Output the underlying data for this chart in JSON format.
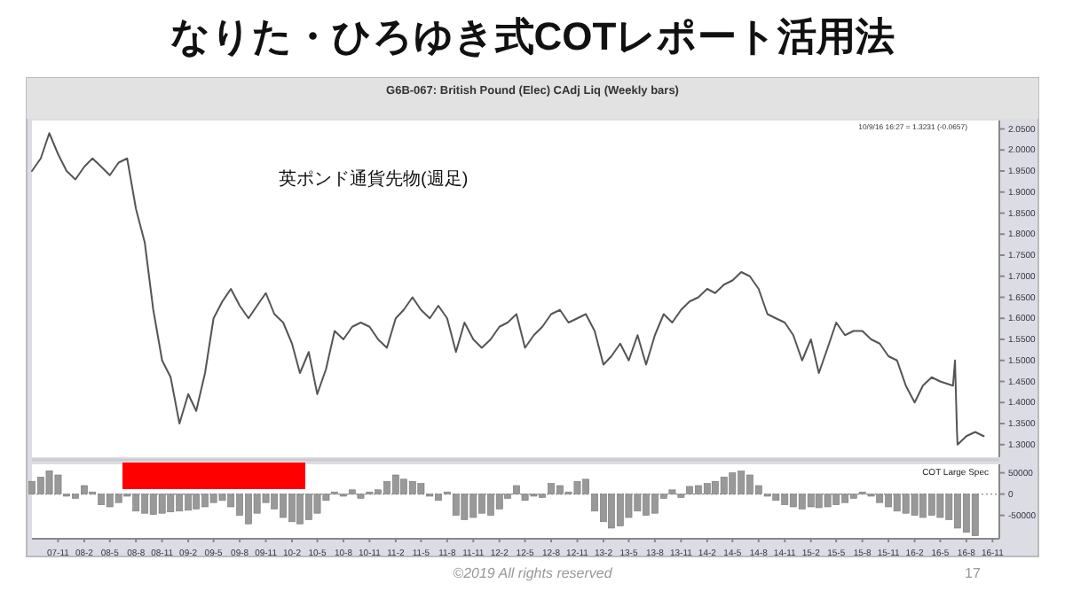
{
  "chart_data": [
    {
      "type": "line",
      "title": "なりた・ひろゆき式COTレポート活用法",
      "subtitle": "G6B-067:  British Pound (Elec) CAdj Liq  (Weekly bars)",
      "annotations": [
        "英ポンド通貨先物(週足)",
        "10/9/16 16:27 = 1.3231 (-0.0657)"
      ],
      "xlim": [
        "2007-08-01",
        "2016-11-25"
      ],
      "ylim": [
        1.27,
        2.07
      ],
      "yticks": [
        {
          "value": 1.3,
          "label": "1.3000"
        },
        {
          "value": 1.35,
          "label": "1.3500"
        },
        {
          "value": 1.4,
          "label": "1.4000"
        },
        {
          "value": 1.45,
          "label": "1.4500"
        },
        {
          "value": 1.5,
          "label": "1.5000"
        },
        {
          "value": 1.55,
          "label": "1.5500"
        },
        {
          "value": 1.6,
          "label": "1.6000"
        },
        {
          "value": 1.65,
          "label": "1.6500"
        },
        {
          "value": 1.7,
          "label": "1.7000"
        },
        {
          "value": 1.75,
          "label": "1.7500"
        },
        {
          "value": 1.8,
          "label": "1.8000"
        },
        {
          "value": 1.85,
          "label": "1.8500"
        },
        {
          "value": 1.9,
          "label": "1.9000"
        },
        {
          "value": 1.95,
          "label": "1.9500"
        },
        {
          "value": 2.0,
          "label": "2.0000"
        },
        {
          "value": 2.05,
          "label": "2.0500"
        }
      ],
      "tick_labels": "y",
      "series": [
        {
          "color": "#555555",
          "x": [
            "2007-08",
            "2007-09",
            "2007-10",
            "2007-11",
            "2007-12",
            "2008-01",
            "2008-02",
            "2008-03",
            "2008-04",
            "2008-05",
            "2008-06",
            "2008-07",
            "2008-08",
            "2008-09",
            "2008-10",
            "2008-11",
            "2008-12",
            "2009-01",
            "2009-02",
            "2009-03",
            "2009-04",
            "2009-05",
            "2009-06",
            "2009-07",
            "2009-08",
            "2009-09",
            "2009-10",
            "2009-11",
            "2009-12",
            "2010-01",
            "2010-02",
            "2010-03",
            "2010-04",
            "2010-05",
            "2010-06",
            "2010-07",
            "2010-08",
            "2010-09",
            "2010-10",
            "2010-11",
            "2010-12",
            "2011-01",
            "2011-02",
            "2011-03",
            "2011-04",
            "2011-05",
            "2011-06",
            "2011-07",
            "2011-08",
            "2011-09",
            "2011-10",
            "2011-11",
            "2011-12",
            "2012-01",
            "2012-02",
            "2012-03",
            "2012-04",
            "2012-05",
            "2012-06",
            "2012-07",
            "2012-08",
            "2012-09",
            "2012-10",
            "2012-11",
            "2012-12",
            "2013-01",
            "2013-02",
            "2013-03",
            "2013-04",
            "2013-05",
            "2013-06",
            "2013-07",
            "2013-08",
            "2013-09",
            "2013-10",
            "2013-11",
            "2013-12",
            "2014-01",
            "2014-02",
            "2014-03",
            "2014-04",
            "2014-05",
            "2014-06",
            "2014-07",
            "2014-08",
            "2014-09",
            "2014-10",
            "2014-11",
            "2014-12",
            "2015-01",
            "2015-02",
            "2015-03",
            "2015-04",
            "2015-05",
            "2015-06",
            "2015-07",
            "2015-08",
            "2015-09",
            "2015-10",
            "2015-11",
            "2015-12",
            "2016-01",
            "2016-02",
            "2016-03",
            "2016-04",
            "2016-05",
            "2016-06-15",
            "2016-06-22",
            "2016-06-29",
            "2016-07",
            "2016-08",
            "2016-09",
            "2016-10"
          ],
          "values": [
            1.95,
            1.98,
            2.04,
            1.99,
            1.95,
            1.93,
            1.96,
            1.98,
            1.96,
            1.94,
            1.97,
            1.98,
            1.86,
            1.78,
            1.62,
            1.5,
            1.46,
            1.35,
            1.42,
            1.38,
            1.47,
            1.6,
            1.64,
            1.67,
            1.63,
            1.6,
            1.63,
            1.66,
            1.61,
            1.59,
            1.54,
            1.47,
            1.52,
            1.42,
            1.48,
            1.57,
            1.55,
            1.58,
            1.59,
            1.58,
            1.55,
            1.53,
            1.6,
            1.62,
            1.65,
            1.62,
            1.6,
            1.63,
            1.6,
            1.52,
            1.59,
            1.55,
            1.53,
            1.55,
            1.58,
            1.59,
            1.61,
            1.53,
            1.56,
            1.58,
            1.61,
            1.62,
            1.59,
            1.6,
            1.61,
            1.57,
            1.49,
            1.51,
            1.54,
            1.5,
            1.56,
            1.49,
            1.56,
            1.61,
            1.59,
            1.62,
            1.64,
            1.65,
            1.67,
            1.66,
            1.68,
            1.69,
            1.71,
            1.7,
            1.67,
            1.61,
            1.6,
            1.59,
            1.56,
            1.5,
            1.55,
            1.47,
            1.53,
            1.59,
            1.56,
            1.57,
            1.57,
            1.55,
            1.54,
            1.51,
            1.5,
            1.44,
            1.4,
            1.44,
            1.46,
            1.45,
            1.44,
            1.5,
            1.33,
            1.3,
            1.32,
            1.33,
            1.32
          ]
        }
      ]
    },
    {
      "type": "bar",
      "annotations": [
        "©2019 All rights reserved",
        "17"
      ],
      "xlim": [
        "2007-08-01",
        "2016-11-25"
      ],
      "xticks": [
        {
          "value": "2007-11",
          "label": "07-11"
        },
        {
          "value": "2008-02",
          "label": "08-2"
        },
        {
          "value": "2008-05",
          "label": "08-5"
        },
        {
          "value": "2008-08",
          "label": "08-8"
        },
        {
          "value": "2008-11",
          "label": "08-11"
        },
        {
          "value": "2009-02",
          "label": "09-2"
        },
        {
          "value": "2009-05",
          "label": "09-5"
        },
        {
          "value": "2009-08",
          "label": "09-8"
        },
        {
          "value": "2009-11",
          "label": "09-11"
        },
        {
          "value": "2010-02",
          "label": "10-2"
        },
        {
          "value": "2010-05",
          "label": "10-5"
        },
        {
          "value": "2010-08",
          "label": "10-8"
        },
        {
          "value": "2010-11",
          "label": "10-11"
        },
        {
          "value": "2011-02",
          "label": "11-2"
        },
        {
          "value": "2011-05",
          "label": "11-5"
        },
        {
          "value": "2011-08",
          "label": "11-8"
        },
        {
          "value": "2011-11",
          "label": "11-11"
        },
        {
          "value": "2012-02",
          "label": "12-2"
        },
        {
          "value": "2012-05",
          "label": "12-5"
        },
        {
          "value": "2012-08",
          "label": "12-8"
        },
        {
          "value": "2012-11",
          "label": "12-11"
        },
        {
          "value": "2013-02",
          "label": "13-2"
        },
        {
          "value": "2013-05",
          "label": "13-5"
        },
        {
          "value": "2013-08",
          "label": "13-8"
        },
        {
          "value": "2013-11",
          "label": "13-11"
        },
        {
          "value": "2014-02",
          "label": "14-2"
        },
        {
          "value": "2014-05",
          "label": "14-5"
        },
        {
          "value": "2014-08",
          "label": "14-8"
        },
        {
          "value": "2014-11",
          "label": "14-11"
        },
        {
          "value": "2015-02",
          "label": "15-2"
        },
        {
          "value": "2015-05",
          "label": "15-5"
        },
        {
          "value": "2015-08",
          "label": "15-8"
        },
        {
          "value": "2015-11",
          "label": "15-11"
        },
        {
          "value": "2016-02",
          "label": "16-2"
        },
        {
          "value": "2016-05",
          "label": "16-5"
        },
        {
          "value": "2016-08",
          "label": "16-8"
        },
        {
          "value": "2016-11",
          "label": "16-11"
        }
      ],
      "ylim": [
        -105000,
        70000
      ],
      "yticks": [
        -50000,
        0,
        50000
      ],
      "legend": "top right",
      "ref_lines": [
        {
          "axis": "y",
          "value": 0,
          "line_style": "dotted",
          "color": "#888888"
        }
      ],
      "series": [
        {
          "name": "COT Large Spec",
          "color": "#999999",
          "x": [
            "2007-08",
            "2007-09",
            "2007-10",
            "2007-11",
            "2007-12",
            "2008-01",
            "2008-02",
            "2008-03",
            "2008-04",
            "2008-05",
            "2008-06",
            "2008-07",
            "2008-08",
            "2008-09",
            "2008-10",
            "2008-11",
            "2008-12",
            "2009-01",
            "2009-02",
            "2009-03",
            "2009-04",
            "2009-05",
            "2009-06",
            "2009-07",
            "2009-08",
            "2009-09",
            "2009-10",
            "2009-11",
            "2009-12",
            "2010-01",
            "2010-02",
            "2010-03",
            "2010-04",
            "2010-05",
            "2010-06",
            "2010-07",
            "2010-08",
            "2010-09",
            "2010-10",
            "2010-11",
            "2010-12",
            "2011-01",
            "2011-02",
            "2011-03",
            "2011-04",
            "2011-05",
            "2011-06",
            "2011-07",
            "2011-08",
            "2011-09",
            "2011-10",
            "2011-11",
            "2011-12",
            "2012-01",
            "2012-02",
            "2012-03",
            "2012-04",
            "2012-05",
            "2012-06",
            "2012-07",
            "2012-08",
            "2012-09",
            "2012-10",
            "2012-11",
            "2012-12",
            "2013-01",
            "2013-02",
            "2013-03",
            "2013-04",
            "2013-05",
            "2013-06",
            "2013-07",
            "2013-08",
            "2013-09",
            "2013-10",
            "2013-11",
            "2013-12",
            "2014-01",
            "2014-02",
            "2014-03",
            "2014-04",
            "2014-05",
            "2014-06",
            "2014-07",
            "2014-08",
            "2014-09",
            "2014-10",
            "2014-11",
            "2014-12",
            "2015-01",
            "2015-02",
            "2015-03",
            "2015-04",
            "2015-05",
            "2015-06",
            "2015-07",
            "2015-08",
            "2015-09",
            "2015-10",
            "2015-11",
            "2015-12",
            "2016-01",
            "2016-02",
            "2016-03",
            "2016-04",
            "2016-05",
            "2016-06",
            "2016-07",
            "2016-08",
            "2016-09"
          ],
          "values": [
            30000,
            40000,
            55000,
            45000,
            -5000,
            -10000,
            20000,
            5000,
            -25000,
            -30000,
            -20000,
            -5000,
            -40000,
            -45000,
            -48000,
            -45000,
            -42000,
            -40000,
            -38000,
            -35000,
            -30000,
            -20000,
            -15000,
            -30000,
            -50000,
            -70000,
            -45000,
            -20000,
            -35000,
            -55000,
            -65000,
            -70000,
            -60000,
            -45000,
            -15000,
            5000,
            -5000,
            10000,
            -10000,
            5000,
            10000,
            30000,
            45000,
            35000,
            30000,
            25000,
            -5000,
            -15000,
            5000,
            -50000,
            -60000,
            -55000,
            -45000,
            -50000,
            -35000,
            -10000,
            20000,
            -15000,
            -5000,
            -8000,
            25000,
            20000,
            5000,
            30000,
            35000,
            -40000,
            -65000,
            -80000,
            -75000,
            -55000,
            -40000,
            -50000,
            -45000,
            -10000,
            10000,
            -8000,
            18000,
            20000,
            25000,
            30000,
            40000,
            50000,
            54000,
            45000,
            20000,
            -5000,
            -15000,
            -25000,
            -30000,
            -35000,
            -30000,
            -32000,
            -30000,
            -25000,
            -20000,
            -10000,
            5000,
            -5000,
            -20000,
            -30000,
            -40000,
            -45000,
            -50000,
            -55000,
            -50000,
            -55000,
            -60000,
            -80000,
            -90000,
            -98000
          ]
        }
      ]
    }
  ]
}
